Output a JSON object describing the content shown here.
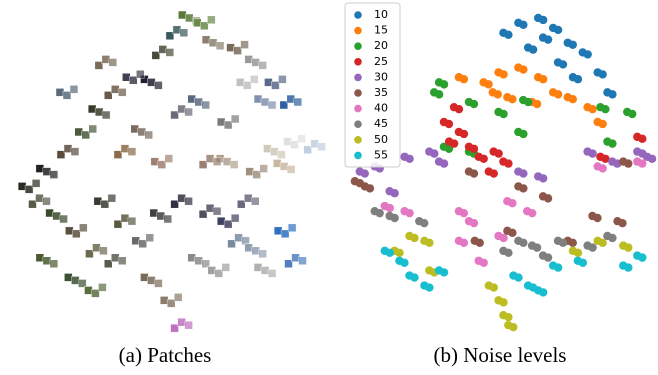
{
  "chart_data": [
    {
      "type": "image-scatter",
      "caption": "(a) Patches",
      "xlim": [
        0,
        100
      ],
      "ylim": [
        0,
        100
      ],
      "x": [
        57.6,
        62.1,
        53.0,
        65.2,
        72.7,
        48.5,
        78.8,
        84.8,
        89.4,
        45.5,
        39.4,
        33.3,
        28.8,
        24.2,
        18.2,
        12.1,
        6.1,
        9.1,
        15.2,
        21.2,
        27.3,
        21.2,
        27.3,
        36.4,
        42.4,
        48.5,
        54.5,
        60.6,
        69.7,
        54.5,
        48.5,
        42.4,
        33.3,
        45.5,
        51.5,
        54.5,
        60.6,
        66.7,
        72.7,
        78.8,
        87.9,
        90.9,
        81.8,
        69.7,
        63.6,
        84.8,
        90.9,
        97.0,
        87.9,
        78.8,
        75.8,
        69.7,
        30.3,
        36.4,
        12.1,
        18.2,
        30.3,
        81.8,
        75.8,
        63.6
      ],
      "y": [
        96.9,
        95.4,
        92.3,
        89.2,
        87.7,
        86.2,
        83.1,
        76.9,
        70.8,
        76.9,
        78.5,
        73.8,
        67.7,
        61.5,
        55.4,
        49.2,
        44.6,
        40.0,
        35.4,
        30.8,
        24.6,
        15.4,
        12.3,
        55.4,
        61.5,
        52.3,
        67.7,
        70.8,
        64.6,
        40.0,
        35.4,
        27.7,
        21.5,
        15.4,
        9.2,
        1.5,
        21.5,
        18.5,
        27.7,
        24.6,
        30.8,
        21.5,
        18.5,
        33.8,
        36.9,
        55.4,
        58.5,
        56.9,
        50.8,
        49.2,
        40.0,
        52.3,
        40.0,
        33.8,
        21.5,
        73.8,
        83.1,
        70.8,
        76.9,
        52.3
      ],
      "colors": [
        "#5a7a3a",
        "#6a8a4a",
        "#3a5a5a",
        "#8a8070",
        "#7a6a5a",
        "#4a4a3a",
        "#9a9a9a",
        "#5a6a8a",
        "#3060a0",
        "#202030",
        "#404050",
        "#6a5a4a",
        "#3a3a2a",
        "#4a5a3a",
        "#5a4a3a",
        "#202020",
        "#2a2a20",
        "#5a5a4a",
        "#3a4a2a",
        "#5a5040",
        "#6a6a50",
        "#3a5030",
        "#5a7040",
        "#8a6a4a",
        "#7a6a60",
        "#a08070",
        "#6a6a7a",
        "#5a6a80",
        "#7a7a7a",
        "#303040",
        "#404040",
        "#6a6a6a",
        "#5a5a50",
        "#7a6a5a",
        "#8a7a6a",
        "#c070c0",
        "#8a8a8a",
        "#a0a0a0",
        "#7a8aa0",
        "#90a0b0",
        "#3070c0",
        "#5080c0",
        "#b0b0b0",
        "#404060",
        "#505060",
        "#d0c8b8",
        "#e0e0e0",
        "#c0d0e0",
        "#c8b8a0",
        "#a09080",
        "#6a6a7a",
        "#b0a090",
        "#3a3a30",
        "#5a5a40",
        "#4a5a30",
        "#5a6a7a",
        "#7a6a5a",
        "#8090b0",
        "#c0c0c0",
        "#9a8070"
      ]
    },
    {
      "type": "scatter",
      "caption": "(b) Noise levels",
      "xlim": [
        0,
        100
      ],
      "ylim": [
        0,
        100
      ],
      "legend": "upper left",
      "series": [
        {
          "name": "10",
          "color": "#1f77b4",
          "x": [
            50.3,
            55.2,
            61.7,
            66.6,
            71.4,
            76.3,
            81.2,
            84.4,
            73.1,
            68.2,
            63.3,
            58.4
          ],
          "y": [
            92.3,
            95.4,
            96.9,
            93.8,
            89.2,
            86.2,
            80.0,
            73.8,
            78.5,
            83.1,
            90.8,
            87.7
          ]
        },
        {
          "name": "15",
          "color": "#ff7f0e",
          "x": [
            43.8,
            48.7,
            55.2,
            61.7,
            66.6,
            59.7,
            51.6,
            46.8,
            71.4,
            77.9,
            81.2,
            35.7
          ],
          "y": [
            76.9,
            80.0,
            81.5,
            78.5,
            73.8,
            70.8,
            72.3,
            73.8,
            72.3,
            69.2,
            64.6,
            78.5
          ]
        },
        {
          "name": "20",
          "color": "#2ca02c",
          "x": [
            27.6,
            29.2,
            39.0,
            48.7,
            56.8,
            30.8,
            39.0,
            84.4,
            90.9,
            82.1,
            55.2
          ],
          "y": [
            73.8,
            76.9,
            70.8,
            67.7,
            71.4,
            56.9,
            55.4,
            58.5,
            67.7,
            69.2,
            61.5
          ]
        },
        {
          "name": "25",
          "color": "#d62728",
          "x": [
            30.8,
            35.7,
            34.1,
            32.5,
            39.0,
            42.2,
            47.1,
            50.3,
            45.5,
            82.1,
            94.2
          ],
          "y": [
            64.6,
            61.5,
            69.2,
            58.5,
            56.9,
            53.8,
            55.4,
            52.3,
            49.2,
            53.8,
            60.0
          ]
        },
        {
          "name": "30",
          "color": "#9467bd",
          "x": [
            3.2,
            8.1,
            17.9,
            26.0,
            13.0,
            29.2,
            55.2,
            61.7,
            77.9,
            86.0,
            94.2,
            97.4
          ],
          "y": [
            49.2,
            50.8,
            53.8,
            55.4,
            43.1,
            52.3,
            49.2,
            47.7,
            55.4,
            52.3,
            55.4,
            53.8
          ]
        },
        {
          "name": "35",
          "color": "#8c564b",
          "x": [
            1.6,
            4.9,
            39.0,
            55.2,
            63.3,
            51.6,
            79.5,
            87.7,
            71.4,
            40.9,
            89.6
          ],
          "y": [
            46.2,
            44.6,
            49.2,
            44.6,
            41.5,
            30.8,
            35.4,
            33.8,
            27.7,
            27.7,
            52.3
          ]
        },
        {
          "name": "40",
          "color": "#e377c2",
          "x": [
            11.4,
            17.9,
            35.7,
            39.0,
            48.7,
            51.6,
            58.1,
            35.7,
            42.2,
            81.2,
            94.2
          ],
          "y": [
            38.5,
            36.9,
            36.9,
            33.8,
            29.2,
            40.0,
            36.9,
            27.7,
            21.5,
            50.8,
            52.3
          ]
        },
        {
          "name": "45",
          "color": "#7f7f7f",
          "x": [
            8.1,
            13.0,
            22.7,
            50.3,
            55.2,
            63.3,
            68.2,
            77.9,
            84.4,
            59.7
          ],
          "y": [
            36.9,
            35.4,
            33.8,
            24.6,
            27.7,
            23.1,
            27.7,
            26.2,
            29.2,
            26.2
          ]
        },
        {
          "name": "50",
          "color": "#bcbd22",
          "x": [
            19.5,
            24.4,
            14.6,
            26.0,
            45.5,
            48.7,
            50.3,
            51.9,
            73.1,
            81.2,
            89.6
          ],
          "y": [
            29.2,
            27.7,
            24.6,
            18.5,
            13.8,
            9.2,
            4.6,
            1.5,
            24.6,
            27.7,
            26.2
          ]
        },
        {
          "name": "55",
          "color": "#17becf",
          "x": [
            11.4,
            16.2,
            19.5,
            24.4,
            29.2,
            53.6,
            58.4,
            61.7,
            66.6,
            74.7,
            89.6,
            94.2
          ],
          "y": [
            24.6,
            21.5,
            16.9,
            13.8,
            18.5,
            16.9,
            13.8,
            12.3,
            20.0,
            21.5,
            20.0,
            23.1
          ]
        }
      ]
    }
  ]
}
